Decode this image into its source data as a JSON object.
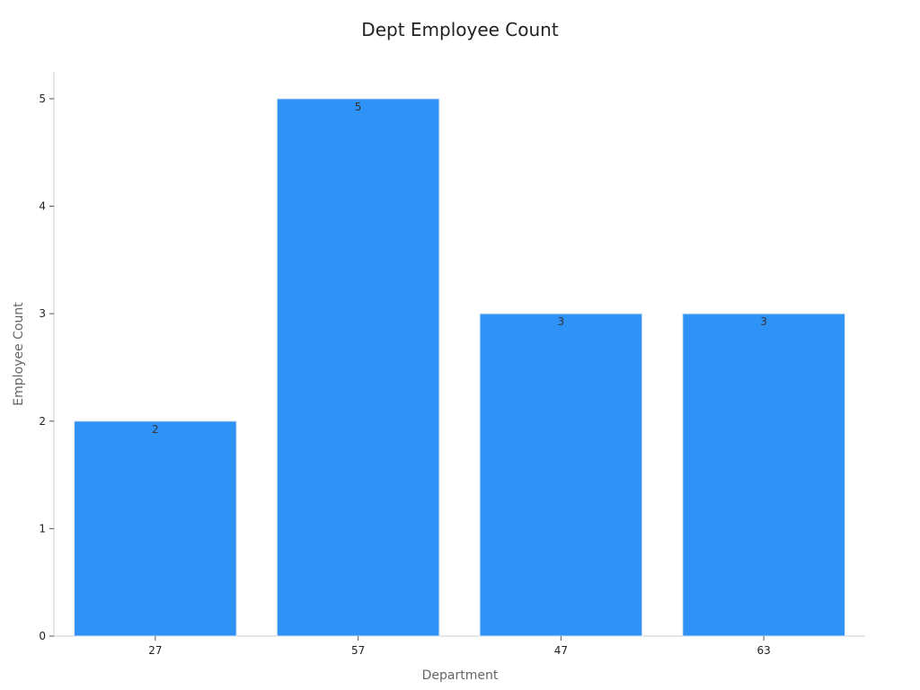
{
  "chart_data": {
    "type": "bar",
    "title": "Dept Employee Count",
    "xlabel": "Department",
    "ylabel": "Employee Count",
    "categories": [
      "27",
      "57",
      "47",
      "63"
    ],
    "values": [
      2,
      5,
      3,
      3
    ],
    "data_labels": [
      "2",
      "5",
      "3",
      "3"
    ],
    "ylim": [
      0,
      5.25
    ],
    "yticks": [
      0,
      1,
      2,
      3,
      4,
      5
    ],
    "ytick_labels": [
      "0",
      "1",
      "2",
      "3",
      "4",
      "5"
    ],
    "grid": false,
    "legend": "none",
    "bar_color": "#2f92f7",
    "bar_edge_color": "#dce6f2"
  }
}
